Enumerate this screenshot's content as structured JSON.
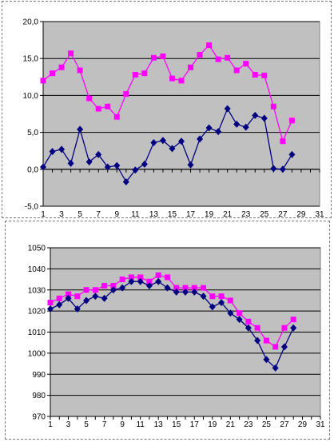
{
  "chart_data": [
    {
      "type": "line",
      "title": "",
      "xlabel": "",
      "ylabel": "",
      "x": [
        1,
        2,
        3,
        4,
        5,
        6,
        7,
        8,
        9,
        10,
        11,
        12,
        13,
        14,
        15,
        16,
        17,
        18,
        19,
        20,
        21,
        22,
        23,
        24,
        25,
        26,
        27,
        28
      ],
      "xlim": [
        1,
        31
      ],
      "xticks": [
        "1",
        "3",
        "5",
        "7",
        "9",
        "11",
        "13",
        "15",
        "17",
        "19",
        "21",
        "23",
        "25",
        "27",
        "29",
        "31"
      ],
      "ylim": [
        -5,
        20
      ],
      "yticks": [
        "-5,0",
        "0,0",
        "5,0",
        "10,0",
        "15,0",
        "20,0"
      ],
      "grid": true,
      "legend": "none",
      "plot_background": "#c0c0c0",
      "series": [
        {
          "color": "#ff00ff",
          "marker": "square",
          "values": [
            12.0,
            13.0,
            13.8,
            15.7,
            13.4,
            9.6,
            8.2,
            8.5,
            7.1,
            10.2,
            12.8,
            13.0,
            15.1,
            15.3,
            12.3,
            12.0,
            13.8,
            15.5,
            16.8,
            14.9,
            15.1,
            13.4,
            14.3,
            12.8,
            12.7,
            8.5,
            3.8,
            6.6
          ]
        },
        {
          "color": "#000080",
          "marker": "diamond",
          "values": [
            0.3,
            2.4,
            2.7,
            0.8,
            5.4,
            1.0,
            2.0,
            0.3,
            0.5,
            -1.7,
            -0.1,
            0.7,
            3.6,
            3.9,
            2.8,
            3.8,
            0.6,
            4.1,
            5.6,
            5.1,
            8.2,
            6.1,
            5.7,
            7.3,
            6.9,
            0.1,
            0.0,
            2.0
          ]
        }
      ]
    },
    {
      "type": "line",
      "title": "",
      "xlabel": "",
      "ylabel": "",
      "x": [
        1,
        2,
        3,
        4,
        5,
        6,
        7,
        8,
        9,
        10,
        11,
        12,
        13,
        14,
        15,
        16,
        17,
        18,
        19,
        20,
        21,
        22,
        23,
        24,
        25,
        26,
        27,
        28
      ],
      "xlim": [
        1,
        31
      ],
      "xticks": [
        "1",
        "3",
        "5",
        "7",
        "9",
        "11",
        "13",
        "15",
        "17",
        "19",
        "21",
        "23",
        "25",
        "27",
        "29",
        "31"
      ],
      "ylim": [
        970,
        1050
      ],
      "yticks": [
        "970",
        "980",
        "990",
        "1000",
        "1010",
        "1020",
        "1030",
        "1040",
        "1050"
      ],
      "grid": true,
      "legend": "none",
      "plot_background": "#c0c0c0",
      "series": [
        {
          "color": "#ff00ff",
          "marker": "square",
          "values": [
            1024,
            1026,
            1028,
            1027,
            1030,
            1030,
            1032,
            1032,
            1035,
            1036,
            1036,
            1034,
            1037,
            1036,
            1031,
            1031,
            1031,
            1031,
            1027,
            1027,
            1025,
            1019,
            1015,
            1012,
            1006,
            1003,
            1012,
            1016
          ]
        },
        {
          "color": "#000080",
          "marker": "diamond",
          "values": [
            1021,
            1023,
            1026,
            1021,
            1025,
            1027,
            1026,
            1030,
            1031,
            1034,
            1034,
            1032,
            1034,
            1031,
            1029,
            1029,
            1029,
            1027,
            1022,
            1024,
            1019,
            1016,
            1012,
            1006,
            997,
            993,
            1003,
            1012
          ]
        }
      ]
    }
  ]
}
